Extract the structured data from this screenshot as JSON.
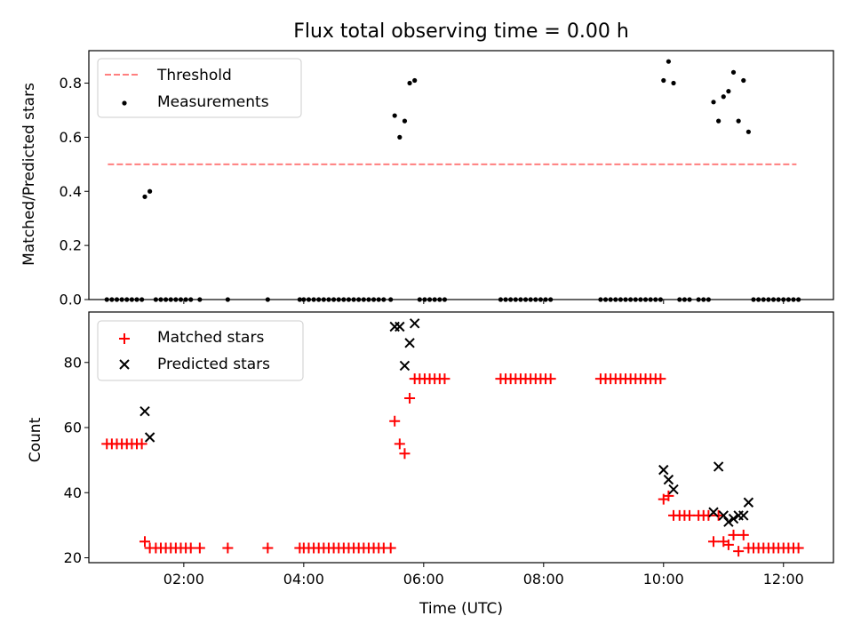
{
  "chart_data": [
    {
      "type": "scatter",
      "title": "Flux total observing time = 0.00 h",
      "xlabel": "",
      "ylabel": "Matched/Predicted stars",
      "xlim": [
        "00:25",
        "12:50"
      ],
      "ylim": [
        0,
        0.92
      ],
      "yticks": [
        0.0,
        0.2,
        0.4,
        0.6,
        0.8
      ],
      "ytick_labels": [
        "0.0",
        "0.2",
        "0.4",
        "0.6",
        "0.8"
      ],
      "xticks": [
        "02:00",
        "04:00",
        "06:00",
        "08:00",
        "10:00",
        "12:00"
      ],
      "show_xtick_labels": false,
      "grid": false,
      "legend": {
        "placement": "top-left",
        "entries": [
          "Threshold",
          "Measurements"
        ]
      },
      "threshold": {
        "name": "Threshold",
        "x": [
          "00:44",
          "12:13"
        ],
        "y": 0.5,
        "color": "#ff7f7f",
        "style": "dashed"
      },
      "series": [
        {
          "name": "Measurements",
          "marker": "dot",
          "color": "#000000",
          "points": [
            [
              "00:43",
              0
            ],
            [
              "00:48",
              0
            ],
            [
              "00:53",
              0
            ],
            [
              "00:58",
              0
            ],
            [
              "01:03",
              0
            ],
            [
              "01:08",
              0
            ],
            [
              "01:13",
              0
            ],
            [
              "01:18",
              0
            ],
            [
              "01:21",
              0.38
            ],
            [
              "01:26",
              0.4
            ],
            [
              "01:32",
              0
            ],
            [
              "01:37",
              0
            ],
            [
              "01:42",
              0
            ],
            [
              "01:47",
              0
            ],
            [
              "01:52",
              0
            ],
            [
              "01:57",
              0
            ],
            [
              "02:02",
              0
            ],
            [
              "02:07",
              0
            ],
            [
              "02:16",
              0
            ],
            [
              "02:44",
              0
            ],
            [
              "03:24",
              0
            ],
            [
              "03:56",
              0
            ],
            [
              "04:00",
              0
            ],
            [
              "04:05",
              0
            ],
            [
              "04:10",
              0
            ],
            [
              "04:15",
              0
            ],
            [
              "04:20",
              0
            ],
            [
              "04:25",
              0
            ],
            [
              "04:30",
              0
            ],
            [
              "04:35",
              0
            ],
            [
              "04:40",
              0
            ],
            [
              "04:45",
              0
            ],
            [
              "04:50",
              0
            ],
            [
              "04:55",
              0
            ],
            [
              "05:00",
              0
            ],
            [
              "05:05",
              0
            ],
            [
              "05:10",
              0
            ],
            [
              "05:15",
              0
            ],
            [
              "05:20",
              0
            ],
            [
              "05:27",
              0
            ],
            [
              "05:31",
              0.68
            ],
            [
              "05:36",
              0.6
            ],
            [
              "05:41",
              0.66
            ],
            [
              "05:46",
              0.8
            ],
            [
              "05:51",
              0.81
            ],
            [
              "05:56",
              0
            ],
            [
              "06:01",
              0
            ],
            [
              "06:06",
              0
            ],
            [
              "06:11",
              0
            ],
            [
              "06:16",
              0
            ],
            [
              "06:21",
              0
            ],
            [
              "07:17",
              0
            ],
            [
              "07:22",
              0
            ],
            [
              "07:27",
              0
            ],
            [
              "07:32",
              0
            ],
            [
              "07:37",
              0
            ],
            [
              "07:42",
              0
            ],
            [
              "07:47",
              0
            ],
            [
              "07:52",
              0
            ],
            [
              "07:57",
              0
            ],
            [
              "08:02",
              0
            ],
            [
              "08:07",
              0
            ],
            [
              "08:57",
              0
            ],
            [
              "09:02",
              0
            ],
            [
              "09:07",
              0
            ],
            [
              "09:12",
              0
            ],
            [
              "09:17",
              0
            ],
            [
              "09:22",
              0
            ],
            [
              "09:27",
              0
            ],
            [
              "09:32",
              0
            ],
            [
              "09:37",
              0
            ],
            [
              "09:42",
              0
            ],
            [
              "09:47",
              0
            ],
            [
              "09:52",
              0
            ],
            [
              "09:57",
              0
            ],
            [
              "10:00",
              0.81
            ],
            [
              "10:05",
              0.88
            ],
            [
              "10:10",
              0.8
            ],
            [
              "10:16",
              0
            ],
            [
              "10:21",
              0
            ],
            [
              "10:26",
              0
            ],
            [
              "10:35",
              0
            ],
            [
              "10:40",
              0
            ],
            [
              "10:45",
              0
            ],
            [
              "10:50",
              0.73
            ],
            [
              "10:55",
              0.66
            ],
            [
              "11:00",
              0.75
            ],
            [
              "11:05",
              0.77
            ],
            [
              "11:10",
              0.84
            ],
            [
              "11:15",
              0.66
            ],
            [
              "11:20",
              0.81
            ],
            [
              "11:25",
              0.62
            ],
            [
              "11:30",
              0
            ],
            [
              "11:35",
              0
            ],
            [
              "11:40",
              0
            ],
            [
              "11:45",
              0
            ],
            [
              "11:50",
              0
            ],
            [
              "11:55",
              0
            ],
            [
              "12:00",
              0
            ],
            [
              "12:05",
              0
            ],
            [
              "12:10",
              0
            ],
            [
              "12:15",
              0
            ]
          ]
        }
      ]
    },
    {
      "type": "scatter",
      "title": "",
      "xlabel": "Time (UTC)",
      "ylabel": "Count",
      "xlim": [
        "00:25",
        "12:50"
      ],
      "ylim": [
        18.5,
        95.5
      ],
      "yticks": [
        20,
        40,
        60,
        80
      ],
      "ytick_labels": [
        "20",
        "40",
        "60",
        "80"
      ],
      "xticks": [
        "02:00",
        "04:00",
        "06:00",
        "08:00",
        "10:00",
        "12:00"
      ],
      "xtick_labels": [
        "02:00",
        "04:00",
        "06:00",
        "08:00",
        "10:00",
        "12:00"
      ],
      "grid": false,
      "legend": {
        "placement": "top-left",
        "entries": [
          "Matched stars",
          "Predicted stars"
        ]
      },
      "series": [
        {
          "name": "Matched stars",
          "marker": "plus",
          "color": "#ff0000",
          "points": [
            [
              "00:43",
              55
            ],
            [
              "00:48",
              55
            ],
            [
              "00:53",
              55
            ],
            [
              "00:58",
              55
            ],
            [
              "01:03",
              55
            ],
            [
              "01:08",
              55
            ],
            [
              "01:13",
              55
            ],
            [
              "01:18",
              55
            ],
            [
              "01:21",
              25
            ],
            [
              "01:26",
              23
            ],
            [
              "01:32",
              23
            ],
            [
              "01:37",
              23
            ],
            [
              "01:42",
              23
            ],
            [
              "01:47",
              23
            ],
            [
              "01:52",
              23
            ],
            [
              "01:57",
              23
            ],
            [
              "02:02",
              23
            ],
            [
              "02:07",
              23
            ],
            [
              "02:16",
              23
            ],
            [
              "02:44",
              23
            ],
            [
              "03:24",
              23
            ],
            [
              "03:56",
              23
            ],
            [
              "04:00",
              23
            ],
            [
              "04:05",
              23
            ],
            [
              "04:10",
              23
            ],
            [
              "04:15",
              23
            ],
            [
              "04:20",
              23
            ],
            [
              "04:25",
              23
            ],
            [
              "04:30",
              23
            ],
            [
              "04:35",
              23
            ],
            [
              "04:40",
              23
            ],
            [
              "04:45",
              23
            ],
            [
              "04:50",
              23
            ],
            [
              "04:55",
              23
            ],
            [
              "05:00",
              23
            ],
            [
              "05:05",
              23
            ],
            [
              "05:10",
              23
            ],
            [
              "05:15",
              23
            ],
            [
              "05:20",
              23
            ],
            [
              "05:27",
              23
            ],
            [
              "05:31",
              62
            ],
            [
              "05:36",
              55
            ],
            [
              "05:41",
              52
            ],
            [
              "05:46",
              69
            ],
            [
              "05:51",
              75
            ],
            [
              "05:56",
              75
            ],
            [
              "06:01",
              75
            ],
            [
              "06:06",
              75
            ],
            [
              "06:11",
              75
            ],
            [
              "06:16",
              75
            ],
            [
              "06:21",
              75
            ],
            [
              "07:17",
              75
            ],
            [
              "07:22",
              75
            ],
            [
              "07:27",
              75
            ],
            [
              "07:32",
              75
            ],
            [
              "07:37",
              75
            ],
            [
              "07:42",
              75
            ],
            [
              "07:47",
              75
            ],
            [
              "07:52",
              75
            ],
            [
              "07:57",
              75
            ],
            [
              "08:02",
              75
            ],
            [
              "08:07",
              75
            ],
            [
              "08:57",
              75
            ],
            [
              "09:02",
              75
            ],
            [
              "09:07",
              75
            ],
            [
              "09:12",
              75
            ],
            [
              "09:17",
              75
            ],
            [
              "09:22",
              75
            ],
            [
              "09:27",
              75
            ],
            [
              "09:32",
              75
            ],
            [
              "09:37",
              75
            ],
            [
              "09:42",
              75
            ],
            [
              "09:47",
              75
            ],
            [
              "09:52",
              75
            ],
            [
              "09:57",
              75
            ],
            [
              "10:00",
              38
            ],
            [
              "10:05",
              39
            ],
            [
              "10:10",
              33
            ],
            [
              "10:16",
              33
            ],
            [
              "10:21",
              33
            ],
            [
              "10:26",
              33
            ],
            [
              "10:35",
              33
            ],
            [
              "10:40",
              33
            ],
            [
              "10:45",
              33
            ],
            [
              "10:50",
              25
            ],
            [
              "10:55",
              33
            ],
            [
              "11:00",
              25
            ],
            [
              "11:05",
              24
            ],
            [
              "11:10",
              27
            ],
            [
              "11:15",
              22
            ],
            [
              "11:20",
              27
            ],
            [
              "11:25",
              23
            ],
            [
              "11:30",
              23
            ],
            [
              "11:35",
              23
            ],
            [
              "11:40",
              23
            ],
            [
              "11:45",
              23
            ],
            [
              "11:50",
              23
            ],
            [
              "11:55",
              23
            ],
            [
              "12:00",
              23
            ],
            [
              "12:05",
              23
            ],
            [
              "12:10",
              23
            ],
            [
              "12:15",
              23
            ]
          ]
        },
        {
          "name": "Predicted stars",
          "marker": "x",
          "color": "#000000",
          "points": [
            [
              "01:21",
              65
            ],
            [
              "01:26",
              57
            ],
            [
              "05:31",
              91
            ],
            [
              "05:36",
              91
            ],
            [
              "05:41",
              79
            ],
            [
              "05:46",
              86
            ],
            [
              "05:51",
              92
            ],
            [
              "10:00",
              47
            ],
            [
              "10:05",
              44
            ],
            [
              "10:10",
              41
            ],
            [
              "10:50",
              34
            ],
            [
              "10:55",
              48
            ],
            [
              "11:00",
              33
            ],
            [
              "11:05",
              31
            ],
            [
              "11:10",
              32
            ],
            [
              "11:15",
              33
            ],
            [
              "11:20",
              33
            ],
            [
              "11:25",
              37
            ]
          ]
        }
      ]
    }
  ]
}
